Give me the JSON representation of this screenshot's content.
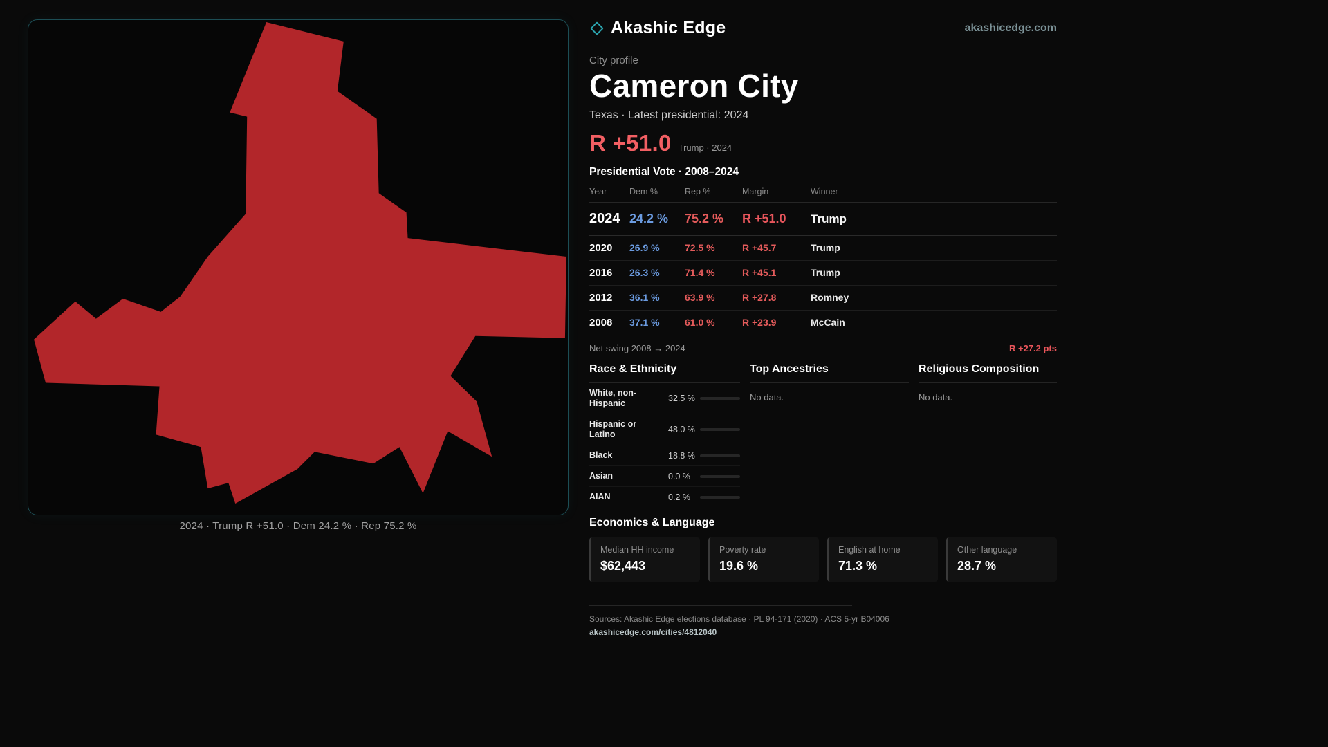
{
  "brand": {
    "name": "Akashic Edge",
    "domain": "akashicedge.com",
    "icon": "diamond",
    "accent_color": "#2ba3ad"
  },
  "map": {
    "caption": "2024 · Trump R +51.0 · Dem 24.2 % · Rep 75.2 %",
    "shape_color": "#b2262a",
    "border_color": "#1c4e55"
  },
  "profile": {
    "eyebrow": "City profile",
    "city": "Cameron City",
    "subtitle": "Texas · Latest presidential: 2024",
    "headline_margin": "R +51.0",
    "headline_note": "Trump · 2024",
    "headline_color": "#f25f63"
  },
  "results": {
    "title": "Presidential Vote · 2008–2024",
    "columns": {
      "year": "Year",
      "dem": "Dem %",
      "rep": "Rep %",
      "margin": "Margin",
      "winner": "Winner"
    },
    "rows": [
      {
        "year": "2024",
        "dem": "24.2 %",
        "rep": "75.2 %",
        "margin": "R +51.0",
        "winner": "Trump"
      },
      {
        "year": "2020",
        "dem": "26.9 %",
        "rep": "72.5 %",
        "margin": "R +45.7",
        "winner": "Trump"
      },
      {
        "year": "2016",
        "dem": "26.3 %",
        "rep": "71.4 %",
        "margin": "R +45.1",
        "winner": "Trump"
      },
      {
        "year": "2012",
        "dem": "36.1 %",
        "rep": "63.9 %",
        "margin": "R +27.8",
        "winner": "Romney"
      },
      {
        "year": "2008",
        "dem": "37.1 %",
        "rep": "61.0 %",
        "margin": "R +23.9",
        "winner": "McCain"
      }
    ],
    "net_swing_label": "Net swing 2008 → 2024",
    "net_swing_value": "R +27.2 pts",
    "dem_color": "#6b9be0",
    "rep_color": "#e45b5b"
  },
  "demographics": {
    "race": {
      "title": "Race & Ethnicity",
      "rows": [
        {
          "label": "White, non-Hispanic",
          "value": "32.5 %",
          "pct": 32.5,
          "color": "#a9bfe3"
        },
        {
          "label": "Hispanic or Latino",
          "value": "48.0 %",
          "pct": 48.0,
          "color": "#d9992b"
        },
        {
          "label": "Black",
          "value": "18.8 %",
          "pct": 18.8,
          "color": "#9b7fd8"
        },
        {
          "label": "Asian",
          "value": "0.0 %",
          "pct": 0.0,
          "color": "#cccccc"
        },
        {
          "label": "AIAN",
          "value": "0.2 %",
          "pct": 0.2,
          "color": "#cccccc"
        }
      ]
    },
    "ancestries": {
      "title": "Top Ancestries",
      "empty": "No data."
    },
    "religion": {
      "title": "Religious Composition",
      "empty": "No data."
    }
  },
  "economics": {
    "title": "Economics & Language",
    "stats": [
      {
        "label": "Median HH income",
        "value": "$62,443"
      },
      {
        "label": "Poverty rate",
        "value": "19.6 %"
      },
      {
        "label": "English at home",
        "value": "71.3 %"
      },
      {
        "label": "Other language",
        "value": "28.7 %"
      }
    ]
  },
  "footer": {
    "sources": "Sources: Akashic Edge elections database · PL 94-171 (2020) · ACS 5-yr B04006",
    "link": "akashicedge.com/cities/4812040"
  }
}
